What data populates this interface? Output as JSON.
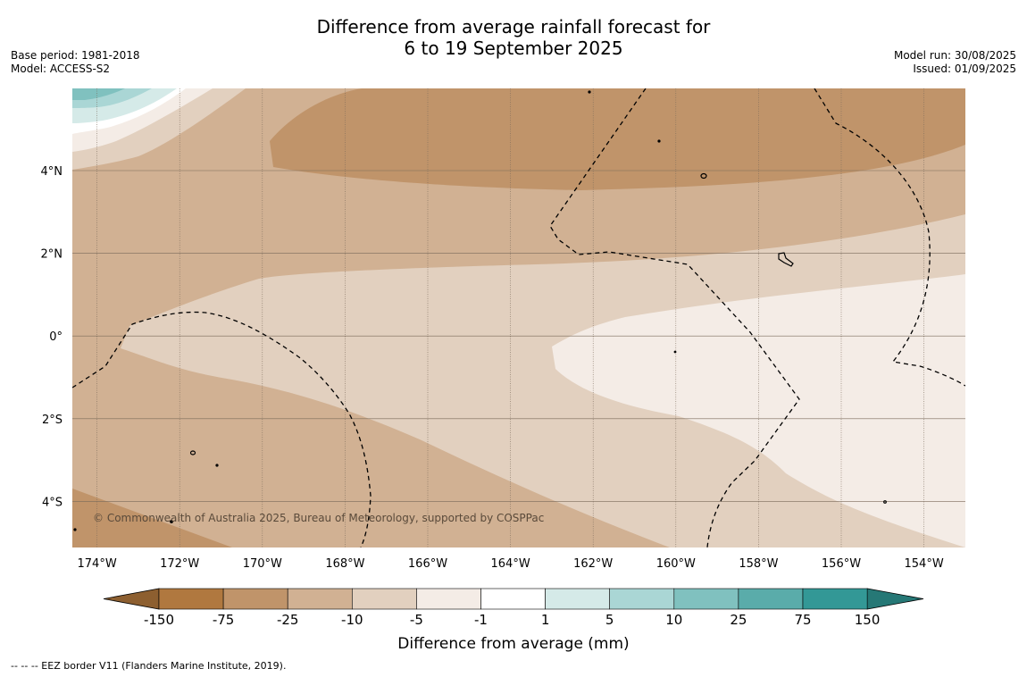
{
  "header": {
    "title_line1": "Difference from average rainfall forecast for",
    "title_line2": "6 to 19 September 2025",
    "base_period": "Base period: 1981-2018",
    "model": "Model: ACCESS-S2",
    "model_run": "Model run: 30/08/2025",
    "issued": "Issued: 01/09/2025"
  },
  "map": {
    "lon_ticks": [
      "174°W",
      "172°W",
      "170°W",
      "168°W",
      "166°W",
      "164°W",
      "162°W",
      "160°W",
      "158°W",
      "156°W",
      "154°W"
    ],
    "lat_ticks": [
      "4°N",
      "2°N",
      "0°",
      "2°S",
      "4°S"
    ],
    "copyright": "© Commonwealth of Australia 2025, Bureau of Meteorology, supported by COSPPac",
    "palette": {
      "dry_150": "#b0783f",
      "dry_75": "#c0946a",
      "dry_25": "#d1b193",
      "dry_10": "#e2d0bf",
      "dry_5": "#f4ece6",
      "neutral": "#ffffff",
      "wet_5": "#d5eae8",
      "wet_10": "#aad6d5",
      "wet_25": "#80c1bf",
      "wet_75": "#5aacaa",
      "wet_150": "#339896"
    }
  },
  "colorbar": {
    "labels": [
      "-150",
      "-75",
      "-25",
      "-10",
      "-5",
      "-1",
      "1",
      "5",
      "10",
      "25",
      "75",
      "150"
    ],
    "colors": [
      "#b0783f",
      "#c0946a",
      "#d1b193",
      "#e2d0bf",
      "#f4ece6",
      "#ffffff",
      "#d5eae8",
      "#aad6d5",
      "#80c1bf",
      "#5aacaa",
      "#339896"
    ],
    "low_extend_color": "#8d5f30",
    "high_extend_color": "#267876",
    "title": "Difference from average (mm)"
  },
  "footer": {
    "legend_text": "--  --  -- EEZ border V11 (Flanders Marine Institute, 2019)."
  }
}
